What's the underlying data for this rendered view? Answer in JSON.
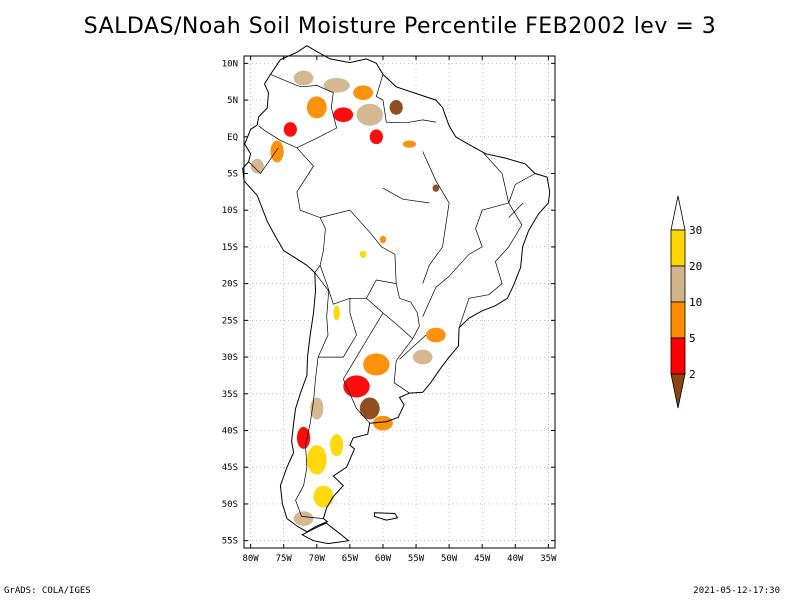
{
  "title": "SALDAS/Noah Soil Moisture Percentile FEB2002 lev = 3",
  "footer": {
    "left": "GrADS: COLA/IGES",
    "right": "2021-05-12-17:30"
  },
  "axes": {
    "lat_labels": [
      "10N",
      "5N",
      "EQ",
      "5S",
      "10S",
      "15S",
      "20S",
      "25S",
      "30S",
      "35S",
      "40S",
      "45S",
      "50S",
      "55S"
    ],
    "lon_labels": [
      "80W",
      "75W",
      "70W",
      "65W",
      "60W",
      "55W",
      "50W",
      "45W",
      "40W",
      "35W"
    ],
    "lat_range": [
      -56,
      11
    ],
    "lon_range": [
      -81,
      -34
    ],
    "grid": "dotted"
  },
  "legend": {
    "placement": "right",
    "levels": [
      "2",
      "5",
      "10",
      "20",
      "30"
    ],
    "colors": [
      "#8b4513",
      "#ff0000",
      "#ff8c00",
      "#d2b48c",
      "#ffd700",
      "#ffffff"
    ]
  },
  "regions": [
    {
      "lon": -72,
      "lat": 8,
      "w": 3,
      "h": 2,
      "color": "#d2b48c"
    },
    {
      "lon": -67,
      "lat": 7,
      "w": 4,
      "h": 2,
      "color": "#d2b48c"
    },
    {
      "lon": -63,
      "lat": 6,
      "w": 3,
      "h": 2,
      "color": "#ff8c00"
    },
    {
      "lon": -70,
      "lat": 4,
      "w": 3,
      "h": 3,
      "color": "#ff8c00"
    },
    {
      "lon": -66,
      "lat": 3,
      "w": 3,
      "h": 2,
      "color": "#ff0000"
    },
    {
      "lon": -62,
      "lat": 3,
      "w": 4,
      "h": 3,
      "color": "#d2b48c"
    },
    {
      "lon": -58,
      "lat": 4,
      "w": 2,
      "h": 2,
      "color": "#8b4513"
    },
    {
      "lon": -74,
      "lat": 1,
      "w": 2,
      "h": 2,
      "color": "#ff0000"
    },
    {
      "lon": -76,
      "lat": -2,
      "w": 2,
      "h": 3,
      "color": "#ff8c00"
    },
    {
      "lon": -79,
      "lat": -4,
      "w": 2,
      "h": 2,
      "color": "#d2b48c"
    },
    {
      "lon": -61,
      "lat": 0,
      "w": 2,
      "h": 2,
      "color": "#ff0000"
    },
    {
      "lon": -56,
      "lat": -1,
      "w": 2,
      "h": 1,
      "color": "#ff8c00"
    },
    {
      "lon": -52,
      "lat": -7,
      "w": 1,
      "h": 1,
      "color": "#8b4513"
    },
    {
      "lon": -60,
      "lat": -14,
      "w": 1,
      "h": 1,
      "color": "#ff8c00"
    },
    {
      "lon": -63,
      "lat": -16,
      "w": 1,
      "h": 1,
      "color": "#ffd700"
    },
    {
      "lon": -67,
      "lat": -24,
      "w": 1,
      "h": 2,
      "color": "#ffd700"
    },
    {
      "lon": -52,
      "lat": -27,
      "w": 3,
      "h": 2,
      "color": "#ff8c00"
    },
    {
      "lon": -54,
      "lat": -30,
      "w": 3,
      "h": 2,
      "color": "#d2b48c"
    },
    {
      "lon": -61,
      "lat": -31,
      "w": 4,
      "h": 3,
      "color": "#ff8c00"
    },
    {
      "lon": -64,
      "lat": -34,
      "w": 4,
      "h": 3,
      "color": "#ff0000"
    },
    {
      "lon": -62,
      "lat": -37,
      "w": 3,
      "h": 3,
      "color": "#8b4513"
    },
    {
      "lon": -60,
      "lat": -39,
      "w": 3,
      "h": 2,
      "color": "#ff8c00"
    },
    {
      "lon": -70,
      "lat": -37,
      "w": 2,
      "h": 3,
      "color": "#d2b48c"
    },
    {
      "lon": -72,
      "lat": -41,
      "w": 2,
      "h": 3,
      "color": "#ff0000"
    },
    {
      "lon": -70,
      "lat": -44,
      "w": 3,
      "h": 4,
      "color": "#ffd700"
    },
    {
      "lon": -69,
      "lat": -49,
      "w": 3,
      "h": 3,
      "color": "#ffd700"
    },
    {
      "lon": -72,
      "lat": -52,
      "w": 3,
      "h": 2,
      "color": "#d2b48c"
    },
    {
      "lon": -67,
      "lat": -42,
      "w": 2,
      "h": 3,
      "color": "#ffd700"
    }
  ]
}
